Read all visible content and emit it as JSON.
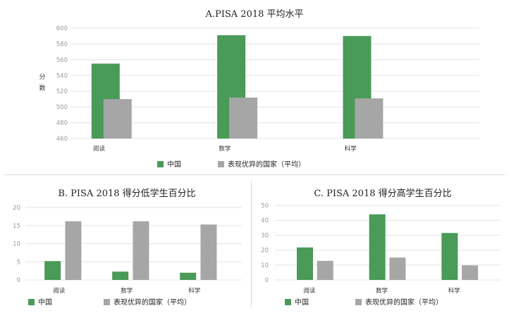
{
  "chart_data": [
    {
      "type": "bar",
      "title": "A.PISA 2018 平均水平",
      "ylabel": "分数",
      "categories": [
        "阅读",
        "数学",
        "科学"
      ],
      "series": [
        {
          "name": "中国",
          "values": [
            555,
            591,
            590
          ]
        },
        {
          "name": "表现优异的国家（平均）",
          "values": [
            510,
            512,
            511
          ]
        }
      ],
      "yticks": [
        "460",
        "480",
        "500",
        "520",
        "540",
        "560",
        "580",
        "600"
      ],
      "ylim": [
        460,
        600
      ],
      "colors": [
        "#4a9a58",
        "#a6a6a6"
      ],
      "grid": true,
      "legend_position": "bottom"
    },
    {
      "type": "bar",
      "title": "B. PISA 2018 得分低学生百分比",
      "categories": [
        "阅读",
        "数学",
        "科学"
      ],
      "series": [
        {
          "name": "中国",
          "values": [
            5.2,
            2.3,
            2.0
          ]
        },
        {
          "name": "表现优异的国家（平均）",
          "values": [
            16.2,
            16.2,
            15.3
          ]
        }
      ],
      "yticks": [
        "0",
        "5",
        "10",
        "15",
        "20"
      ],
      "ylim": [
        0,
        20
      ],
      "colors": [
        "#4a9a58",
        "#a6a6a6"
      ],
      "grid": true,
      "legend_position": "bottom"
    },
    {
      "type": "bar",
      "title": "C. PISA 2018 得分高学生百分比",
      "categories": [
        "阅读",
        "数学",
        "科学"
      ],
      "series": [
        {
          "name": "中国",
          "values": [
            21.8,
            44.0,
            31.5
          ]
        },
        {
          "name": "表现优异的国家（平均）",
          "values": [
            12.8,
            15.0,
            9.8
          ]
        }
      ],
      "yticks": [
        "0",
        "10",
        "20",
        "30",
        "40",
        "50"
      ],
      "ylim": [
        0,
        50
      ],
      "colors": [
        "#4a9a58",
        "#a6a6a6"
      ],
      "grid": true,
      "legend_position": "bottom"
    }
  ]
}
